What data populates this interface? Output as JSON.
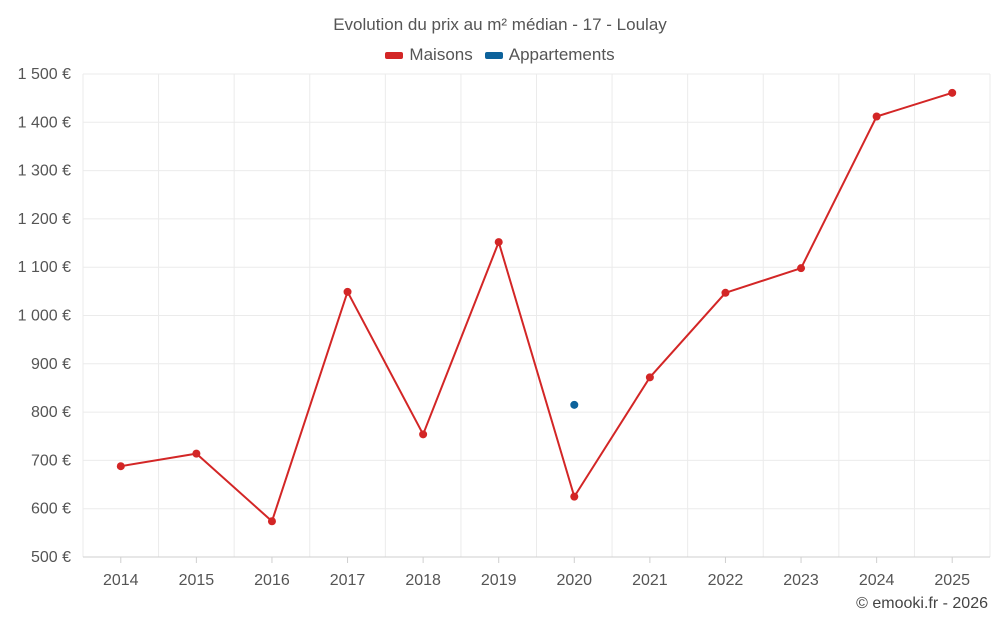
{
  "colors": {
    "maisons": "#d32626",
    "appartements": "#0d629b",
    "grid": "#ebebeb",
    "axis": "#cfcfcf"
  },
  "chart_data": {
    "type": "line",
    "title": "Evolution du prix au m² médian - 17 - Loulay",
    "categories": [
      "2014",
      "2015",
      "2016",
      "2017",
      "2018",
      "2019",
      "2020",
      "2021",
      "2022",
      "2023",
      "2024",
      "2025"
    ],
    "series": [
      {
        "name": "Maisons",
        "values": [
          688,
          714,
          574,
          1049,
          754,
          1152,
          625,
          872,
          1047,
          1098,
          1412,
          1461
        ]
      },
      {
        "name": "Appartements",
        "values": [
          null,
          null,
          null,
          null,
          null,
          null,
          815,
          null,
          null,
          null,
          null,
          null
        ]
      }
    ],
    "yticks": [
      "1 500 €",
      "1 400 €",
      "1 300 €",
      "1 200 €",
      "1 100 €",
      "1 000 €",
      "900 €",
      "800 €",
      "700 €",
      "600 €",
      "500 €"
    ],
    "ylim": [
      500,
      1500
    ],
    "xlabel": "",
    "ylabel": "",
    "grid": true,
    "legend": "top-center"
  },
  "credit": "© emooki.fr - 2026"
}
